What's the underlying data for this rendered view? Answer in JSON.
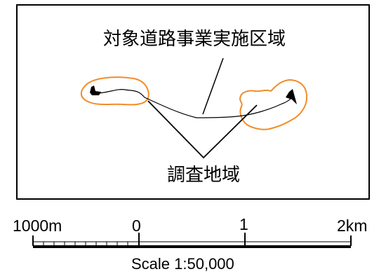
{
  "map": {
    "labels": {
      "project_area": "対象道路事業実施区域",
      "survey_area": "調査地域"
    },
    "colors": {
      "survey_area_outline": "#F28C28",
      "frame": "#000000",
      "road": "#000000"
    },
    "icons": {
      "left_pond": "pond-shape-icon",
      "right_pond": "pond-shape-icon"
    }
  },
  "scale_bar": {
    "ticks": [
      "1000m",
      "0",
      "1",
      "2km"
    ],
    "caption": "Scale 1:50,000"
  }
}
